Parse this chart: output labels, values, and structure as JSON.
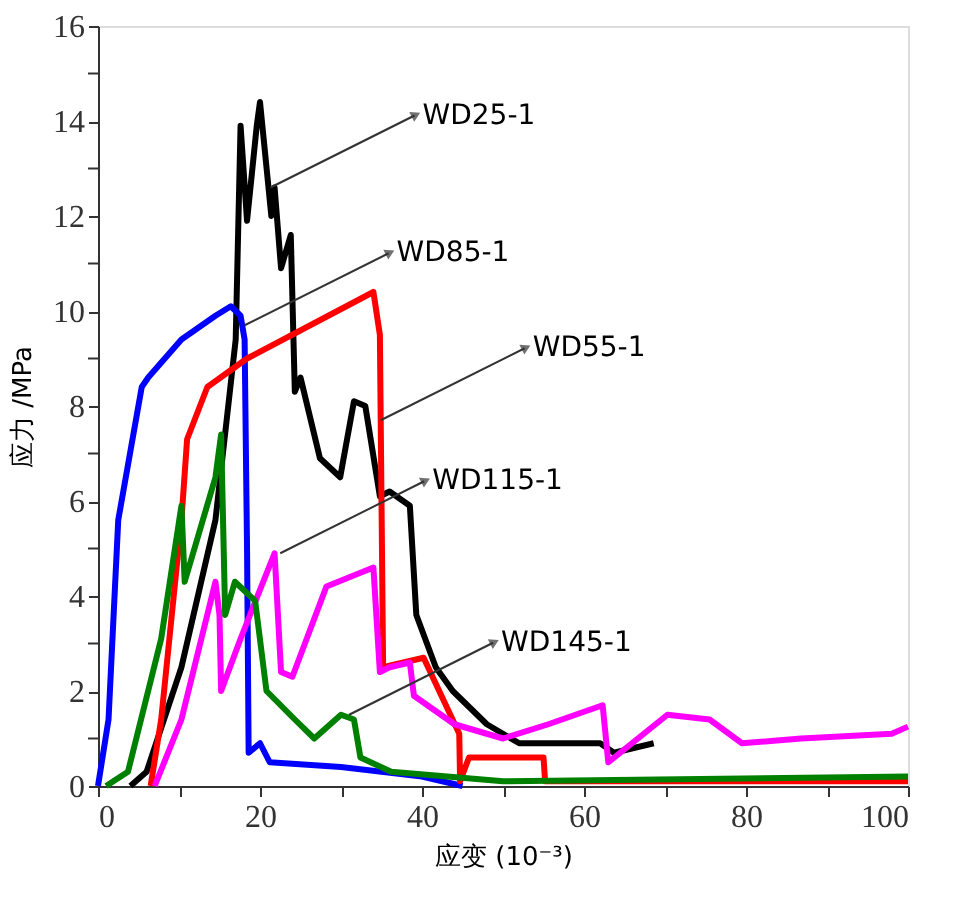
{
  "chart_data": {
    "type": "line",
    "xlabel": "应变 (10⁻³)",
    "ylabel": "应力 /MPa",
    "xlim": [
      0,
      100
    ],
    "xticks": [
      0,
      {
        "value": 10,
        "label": null
      },
      20,
      {
        "value": 30,
        "label": null
      },
      40,
      {
        "value": 50,
        "label": null
      },
      60,
      {
        "value": 70,
        "label": null
      },
      80,
      {
        "value": 90,
        "label": null
      },
      100
    ],
    "ylim": [
      0,
      16
    ],
    "yticks": [
      0,
      {
        "value": 1,
        "label": null
      },
      2,
      {
        "value": 3,
        "label": null
      },
      4,
      {
        "value": 5,
        "label": null
      },
      6,
      {
        "value": 7,
        "label": null
      },
      8,
      {
        "value": 9,
        "label": null
      },
      10,
      {
        "value": 11,
        "label": null
      },
      12,
      {
        "value": 13,
        "label": null
      },
      14,
      {
        "value": 15,
        "label": null
      },
      16
    ],
    "grid": false,
    "legend": false,
    "line_style": "solid",
    "marker": "none",
    "series": [
      {
        "color": "#000000",
        "x": [
          4,
          6,
          10.3,
          14.5,
          17,
          17.6,
          18.4,
          19.6,
          20,
          21.4,
          21.8,
          22.6,
          23.8,
          24.3,
          25,
          27.4,
          29.9,
          31.6,
          33,
          34.8,
          36,
          38.5,
          39.3,
          41.7,
          43.8,
          48,
          52,
          62,
          63.7,
          68.6
        ],
        "values": [
          0,
          0.3,
          2.5,
          5.6,
          9.4,
          13.9,
          11.9,
          13.9,
          14.4,
          12,
          12.6,
          10.9,
          11.6,
          8.3,
          8.6,
          6.9,
          6.5,
          8.1,
          8,
          6.1,
          6.2,
          5.9,
          3.6,
          2.5,
          2,
          1.3,
          0.9,
          0.9,
          0.7,
          0.9
        ]
      },
      {
        "color": "#0000ff",
        "x": [
          0,
          1.3,
          2.5,
          5.4,
          6.2,
          10.3,
          14.5,
          16.4,
          17.6,
          18.1,
          18.4,
          18.6,
          20,
          21.2,
          30,
          40,
          45
        ],
        "values": [
          0,
          1.4,
          5.6,
          8.4,
          8.6,
          9.4,
          9.9,
          10.1,
          9.9,
          9.4,
          5,
          0.7,
          0.9,
          0.5,
          0.4,
          0.2,
          0
        ]
      },
      {
        "color": "#ff0000",
        "x": [
          6.5,
          7.8,
          10.3,
          11,
          13.5,
          18.4,
          34,
          34.8,
          35.2,
          40.2,
          44.6,
          44.7,
          45.8,
          55,
          55.2,
          70,
          100
        ],
        "values": [
          0,
          1.4,
          5.6,
          7.3,
          8.4,
          9,
          10.4,
          9.5,
          2.5,
          2.7,
          1.1,
          0.1,
          0.6,
          0.6,
          0.1,
          0.1,
          0.1
        ]
      },
      {
        "color": "#ff00ff",
        "x": [
          7,
          10.3,
          14.5,
          15,
          15.2,
          17.6,
          21.8,
          22.6,
          24,
          28.2,
          34,
          34.8,
          36,
          38.5,
          39,
          44,
          50,
          55.6,
          62.3,
          63,
          70.3,
          75.5,
          79.5,
          86.8,
          98,
          100
        ],
        "values": [
          0,
          1.4,
          4.3,
          3.6,
          2,
          3.1,
          4.9,
          2.4,
          2.3,
          4.2,
          4.6,
          2.4,
          2.5,
          2.6,
          1.9,
          1.3,
          1,
          1.3,
          1.7,
          0.5,
          1.5,
          1.4,
          0.9,
          1,
          1.1,
          1.25
        ]
      },
      {
        "color": "#008000",
        "x": [
          1,
          3.7,
          7.8,
          10.3,
          10.7,
          14.5,
          15.2,
          15.7,
          16.9,
          19.4,
          20.8,
          24.3,
          26.7,
          30,
          31.6,
          32.4,
          36.2,
          50,
          100
        ],
        "values": [
          0,
          0.3,
          3.1,
          5.9,
          4.3,
          6.5,
          7.4,
          3.6,
          4.3,
          3.9,
          2,
          1.4,
          1,
          1.5,
          1.4,
          0.6,
          0.3,
          0.1,
          0.2
        ]
      }
    ],
    "annotations": [
      {
        "text": "WD25-1",
        "x": 21.3,
        "y": 12.6
      },
      {
        "text": "WD85-1",
        "x": 18.1,
        "y": 9.7
      },
      {
        "text": "WD55-1",
        "x": 34.9,
        "y": 7.7
      },
      {
        "text": "WD115-1",
        "x": 22.5,
        "y": 4.9
      },
      {
        "text": "WD145-1",
        "x": 31,
        "y": 1.5
      }
    ]
  }
}
